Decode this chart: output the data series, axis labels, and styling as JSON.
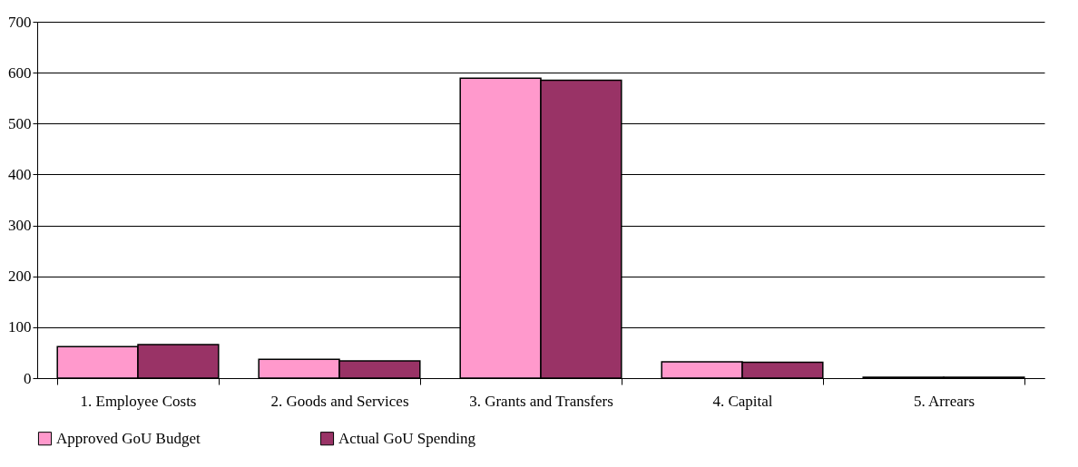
{
  "chart_data": {
    "type": "bar",
    "categories": [
      "1. Employee Costs",
      "2. Goods and Services",
      "3. Grants and Transfers",
      "4. Capital",
      "5. Arrears"
    ],
    "series": [
      {
        "name": "Approved GoU Budget",
        "color": "#ff99cc",
        "values": [
          62,
          37,
          589,
          32,
          2
        ]
      },
      {
        "name": "Actual GoU Spending",
        "color": "#993366",
        "values": [
          66,
          34,
          585,
          31,
          2
        ]
      }
    ],
    "ylim": [
      0,
      700
    ],
    "yticks": [
      0,
      100,
      200,
      300,
      400,
      500,
      600,
      700
    ],
    "grid": "y",
    "legend": "bottom left"
  }
}
